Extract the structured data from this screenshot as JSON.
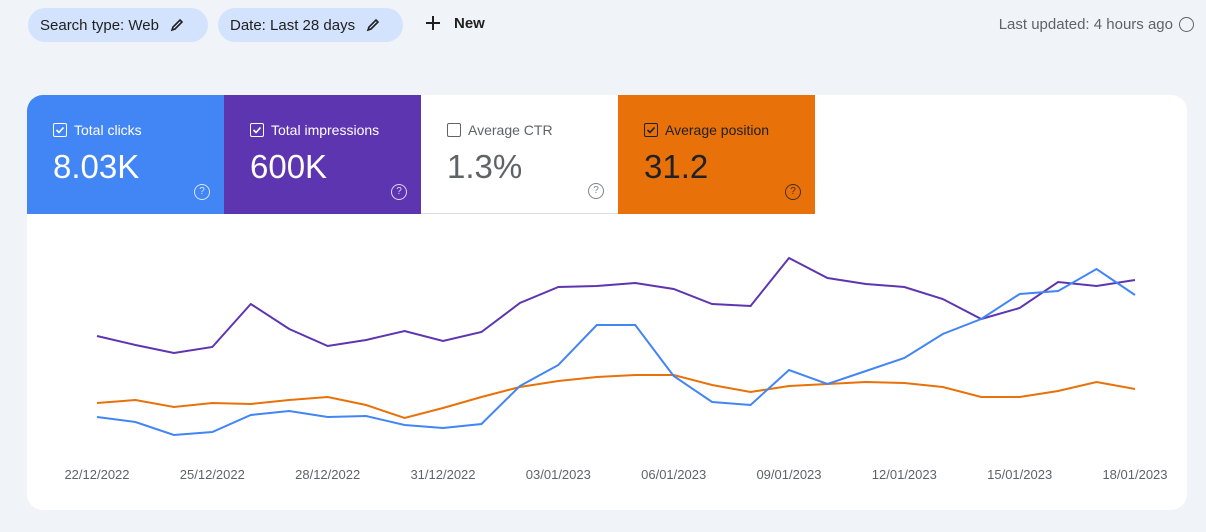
{
  "filters": [
    {
      "label": "Search type: Web"
    },
    {
      "label": "Date: Last 28 days"
    }
  ],
  "new_button": "New",
  "last_updated": "Last updated: 4 hours ago",
  "cards": [
    {
      "label": "Total clicks",
      "value": "8.03K",
      "checked": true,
      "color": "#4285f4"
    },
    {
      "label": "Total impressions",
      "value": "600K",
      "checked": true,
      "color": "#5e35b1"
    },
    {
      "label": "Average CTR",
      "value": "1.3%",
      "checked": false,
      "color": "#ffffff"
    },
    {
      "label": "Average position",
      "value": "31.2",
      "checked": true,
      "color": "#e8710a"
    }
  ],
  "chart_data": {
    "type": "line",
    "categories": [
      "22/12/2022",
      null,
      null,
      "25/12/2022",
      null,
      null,
      "28/12/2022",
      null,
      null,
      "31/12/2022",
      null,
      null,
      "03/01/2023",
      null,
      null,
      "06/01/2023",
      null,
      null,
      "09/01/2023",
      null,
      null,
      "12/01/2023",
      null,
      null,
      "15/01/2023",
      null,
      null,
      "18/01/2023"
    ],
    "ylim": [
      0,
      230
    ],
    "series": [
      {
        "color": "#5e35b1",
        "values": [
          134,
          125,
          117,
          123,
          166,
          141,
          124,
          130,
          139,
          129,
          138,
          167,
          183,
          184,
          187,
          181,
          166,
          164,
          212,
          192,
          186,
          183,
          171,
          151,
          162,
          188,
          184,
          190
        ]
      },
      {
        "color": "#e8710a",
        "values": [
          67,
          70,
          63,
          67,
          66,
          70,
          73,
          65,
          52,
          62,
          73,
          83,
          89,
          93,
          95,
          95,
          85,
          78,
          84,
          86,
          88,
          87,
          83,
          73,
          73,
          79,
          88,
          81
        ]
      },
      {
        "color": "#4285f4",
        "values": [
          53,
          48,
          35,
          38,
          55,
          59,
          53,
          54,
          45,
          42,
          46,
          84,
          105,
          145,
          145,
          94,
          68,
          65,
          100,
          86,
          99,
          112,
          136,
          151,
          176,
          179,
          201,
          175
        ]
      }
    ]
  }
}
